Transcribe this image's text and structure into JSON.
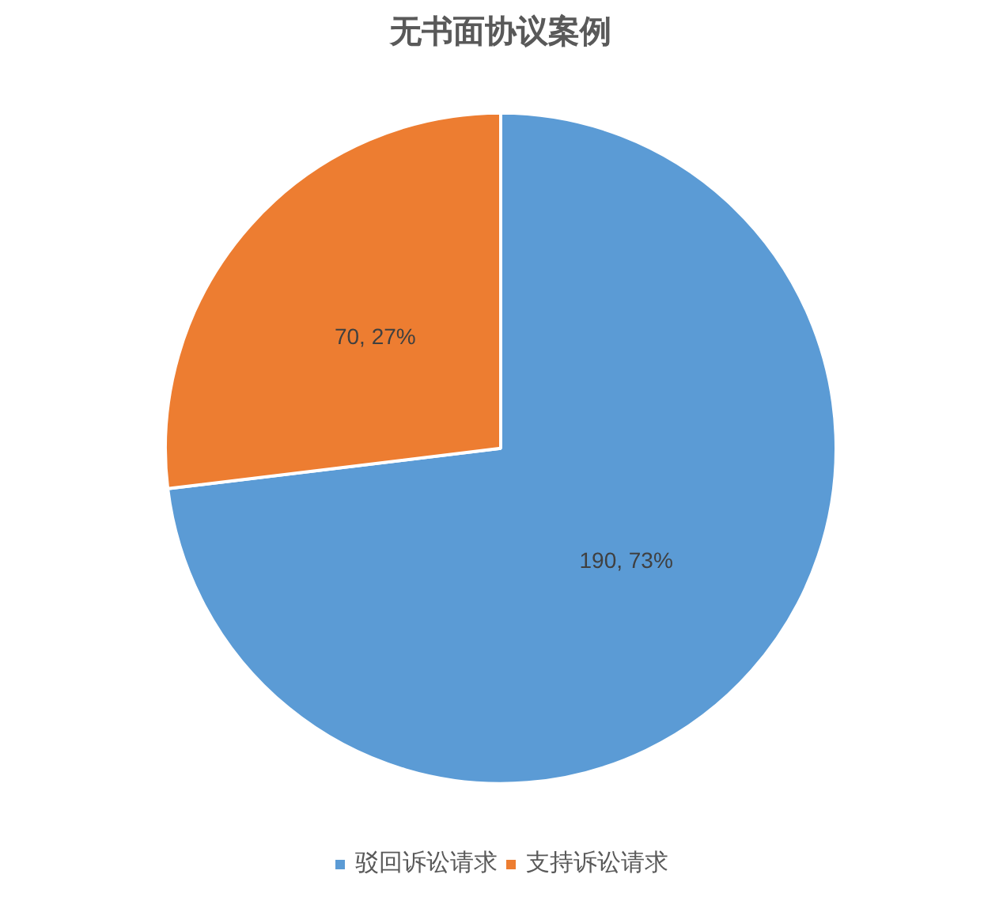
{
  "chart_data": {
    "type": "pie",
    "title": "无书面协议案例",
    "categories": [
      "驳回诉讼请求",
      "支持诉讼请求"
    ],
    "values": [
      190,
      70
    ],
    "colors": [
      "#5b9bd5",
      "#ed7d31"
    ],
    "value_labels": [
      "190, 73%",
      "70, 27%"
    ],
    "legend": "bottom"
  }
}
